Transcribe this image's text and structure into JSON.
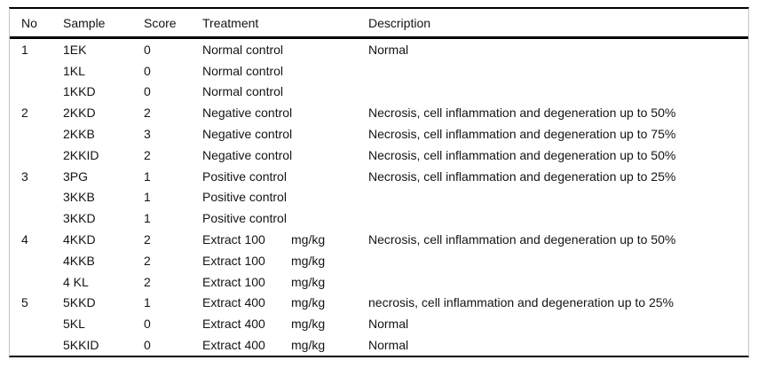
{
  "colors": {
    "background": "#ffffff",
    "text": "#141414",
    "rule": "#000000",
    "side_line": "#c5c5c5"
  },
  "table": {
    "header": {
      "no": "No",
      "sample": "Sample",
      "score": "Score",
      "treatment": "Treatment",
      "description": "Description"
    },
    "rows": [
      {
        "no": "1",
        "sample": "1EK",
        "score": "0",
        "treatment": "Normal control",
        "unit": "",
        "description": "Normal"
      },
      {
        "no": "",
        "sample": "1KL",
        "score": "0",
        "treatment": "Normal control",
        "unit": "",
        "description": ""
      },
      {
        "no": "",
        "sample": "1KKD",
        "score": "0",
        "treatment": "Normal control",
        "unit": "",
        "description": ""
      },
      {
        "no": "2",
        "sample": "2KKD",
        "score": "2",
        "treatment": "Negative control",
        "unit": "",
        "description": "Necrosis, cell inflammation and degeneration up to 50%"
      },
      {
        "no": "",
        "sample": "2KKB",
        "score": "3",
        "treatment": "Negative control",
        "unit": "",
        "description": "Necrosis, cell inflammation and degeneration up to 75%"
      },
      {
        "no": "",
        "sample": "2KKID",
        "score": "2",
        "treatment": "Negative control",
        "unit": "",
        "description": "Necrosis, cell inflammation and degeneration up to 50%"
      },
      {
        "no": "3",
        "sample": "3PG",
        "score": "1",
        "treatment": "Positive control",
        "unit": "",
        "description": "Necrosis, cell inflammation and degeneration up to 25%"
      },
      {
        "no": "",
        "sample": "3KKB",
        "score": "1",
        "treatment": "Positive control",
        "unit": "",
        "description": ""
      },
      {
        "no": "",
        "sample": "3KKD",
        "score": "1",
        "treatment": "Positive control",
        "unit": "",
        "description": ""
      },
      {
        "no": "4",
        "sample": "4KKD",
        "score": "2",
        "treatment": "Extract 100",
        "unit": "mg/kg",
        "description": "Necrosis, cell inflammation and degeneration up to 50%"
      },
      {
        "no": "",
        "sample": "4KKB",
        "score": "2",
        "treatment": "Extract 100",
        "unit": "mg/kg",
        "description": ""
      },
      {
        "no": "",
        "sample": "4 KL",
        "score": "2",
        "treatment": "Extract 100",
        "unit": "mg/kg",
        "description": ""
      },
      {
        "no": "5",
        "sample": "5KKD",
        "score": "1",
        "treatment": "Extract 400",
        "unit": "mg/kg",
        "description": "necrosis, cell inflammation and degeneration up to 25%"
      },
      {
        "no": "",
        "sample": "5KL",
        "score": "0",
        "treatment": "Extract 400",
        "unit": "mg/kg",
        "description": "Normal"
      },
      {
        "no": "",
        "sample": "5KKID",
        "score": "0",
        "treatment": "Extract 400",
        "unit": "mg/kg",
        "description": "Normal"
      }
    ]
  }
}
